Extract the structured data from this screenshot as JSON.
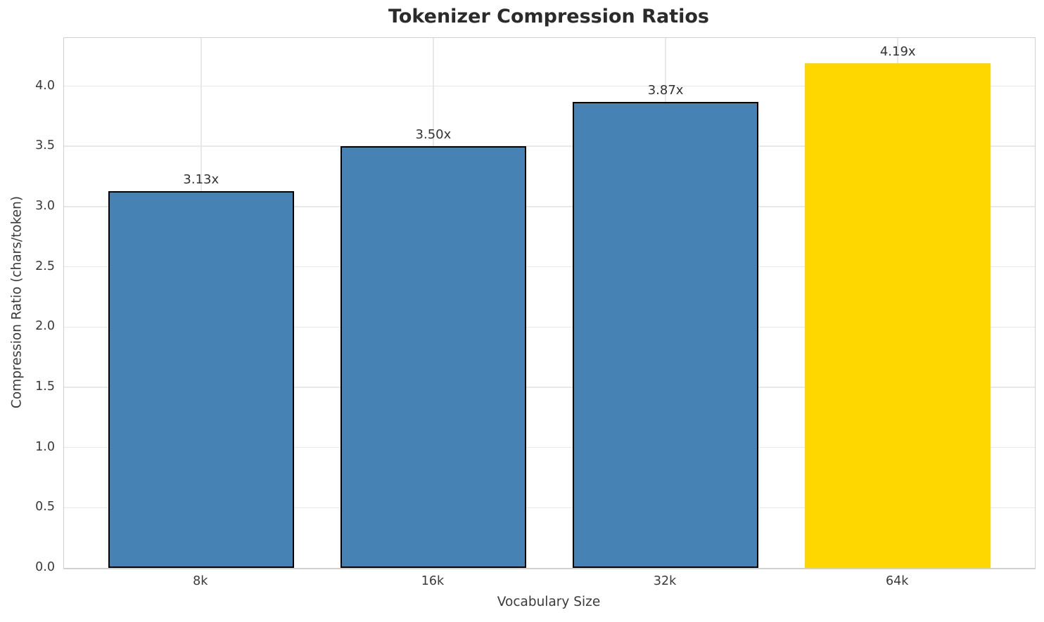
{
  "chart_data": {
    "type": "bar",
    "title": "Tokenizer Compression Ratios",
    "xlabel": "Vocabulary Size",
    "ylabel": "Compression Ratio (chars/token)",
    "categories": [
      "8k",
      "16k",
      "32k",
      "64k"
    ],
    "values": [
      3.13,
      3.5,
      3.87,
      4.19
    ],
    "bar_labels": [
      "3.13x",
      "3.50x",
      "3.87x",
      "4.19x"
    ],
    "bar_colors": [
      "#4682B4",
      "#4682B4",
      "#4682B4",
      "#FFD700"
    ],
    "bar_edge_colors": [
      "#000000",
      "#000000",
      "#000000",
      "#FFD700"
    ],
    "highlight_index": 3,
    "ylim": [
      0,
      4.4
    ],
    "yticks": [
      0.0,
      0.5,
      1.0,
      1.5,
      2.0,
      2.5,
      3.0,
      3.5,
      4.0
    ],
    "ytick_labels": [
      "0.0",
      "0.5",
      "1.0",
      "1.5",
      "2.0",
      "2.5",
      "3.0",
      "3.5",
      "4.0"
    ],
    "grid": true,
    "legend": null,
    "background_color": "#ffffff",
    "grid_color": "#e8e8e8",
    "spine_color": "#d0d0d0",
    "text_color": "#3a3a3a"
  }
}
